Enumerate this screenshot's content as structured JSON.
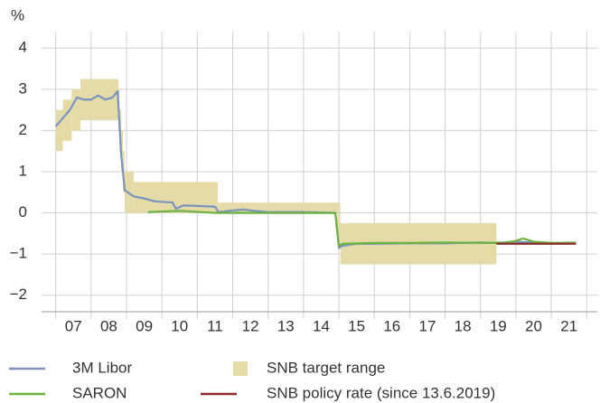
{
  "chart_data": {
    "type": "line",
    "y_unit": "%",
    "xlim": [
      2006.6,
      2022.3
    ],
    "ylim": [
      -2.4,
      4.4
    ],
    "yticks": [
      4,
      3,
      2,
      1,
      0,
      {
        "value": -1,
        "label": "−1"
      },
      {
        "value": -2,
        "label": "−2"
      }
    ],
    "xticks": [
      {
        "value": 2007.5,
        "label": "07"
      },
      {
        "value": 2008.5,
        "label": "08"
      },
      {
        "value": 2009.5,
        "label": "09"
      },
      {
        "value": 2010.5,
        "label": "10"
      },
      {
        "value": 2011.5,
        "label": "11"
      },
      {
        "value": 2012.5,
        "label": "12"
      },
      {
        "value": 2013.5,
        "label": "13"
      },
      {
        "value": 2014.5,
        "label": "14"
      },
      {
        "value": 2015.5,
        "label": "15"
      },
      {
        "value": 2016.5,
        "label": "16"
      },
      {
        "value": 2017.5,
        "label": "17"
      },
      {
        "value": 2018.5,
        "label": "18"
      },
      {
        "value": 2019.5,
        "label": "19"
      },
      {
        "value": 2020.5,
        "label": "20"
      },
      {
        "value": 2021.5,
        "label": "21"
      }
    ],
    "x_gridlines": [
      2007,
      2008,
      2009,
      2010,
      2011,
      2012,
      2013,
      2014,
      2015,
      2016,
      2017,
      2018,
      2019,
      2020,
      2021,
      2022
    ],
    "grid": true,
    "target_range": {
      "name": "SNB target range",
      "color": "#e5dba8",
      "edges": [
        2007.0,
        2007.2,
        2007.45,
        2007.7,
        2008.77,
        2008.8,
        2008.85,
        2008.9,
        2008.95,
        2009.2,
        2011.58,
        2014.96,
        2015.04,
        2019.45
      ],
      "lower": [
        1.5,
        1.75,
        2.0,
        2.25,
        2.0,
        1.5,
        1.0,
        0.5,
        0.0,
        0.0,
        0.0,
        -0.75,
        -1.25
      ],
      "upper": [
        2.5,
        2.75,
        3.0,
        3.25,
        3.0,
        2.5,
        2.0,
        1.5,
        1.0,
        0.75,
        0.25,
        0.25,
        -0.25
      ]
    },
    "series": [
      {
        "name": "3M Libor",
        "color": "#7a94bd",
        "x": [
          2007.0,
          2007.2,
          2007.4,
          2007.6,
          2007.8,
          2008.0,
          2008.2,
          2008.4,
          2008.6,
          2008.75,
          2008.85,
          2008.95,
          2009.2,
          2009.5,
          2009.8,
          2010.3,
          2010.4,
          2010.6,
          2011.0,
          2011.5,
          2011.6,
          2011.9,
          2012.3,
          2012.6,
          2013.0,
          2014.0,
          2014.9,
          2015.0,
          2015.1,
          2015.5,
          2016.0,
          2017.0,
          2018.0,
          2019.0,
          2019.5,
          2020.0,
          2021.0,
          2021.6
        ],
        "values": [
          2.1,
          2.3,
          2.5,
          2.8,
          2.75,
          2.75,
          2.85,
          2.75,
          2.8,
          2.95,
          1.4,
          0.55,
          0.4,
          0.35,
          0.28,
          0.25,
          0.1,
          0.18,
          0.17,
          0.15,
          0.02,
          0.05,
          0.08,
          0.05,
          0.02,
          0.02,
          0.0,
          -0.85,
          -0.8,
          -0.75,
          -0.75,
          -0.74,
          -0.74,
          -0.72,
          -0.73,
          -0.7,
          -0.74,
          -0.74
        ]
      },
      {
        "name": "SARON",
        "color": "#6cb33f",
        "x": [
          2009.6,
          2010.5,
          2011.5,
          2012.0,
          2013.0,
          2014.0,
          2014.9,
          2015.0,
          2015.1,
          2016.0,
          2017.0,
          2018.0,
          2019.3,
          2019.7,
          2020.0,
          2020.2,
          2020.5,
          2021.0,
          2021.7
        ],
        "values": [
          0.02,
          0.05,
          0.0,
          0.0,
          0.0,
          0.0,
          0.0,
          -0.8,
          -0.75,
          -0.73,
          -0.73,
          -0.72,
          -0.73,
          -0.72,
          -0.68,
          -0.62,
          -0.7,
          -0.73,
          -0.72
        ]
      },
      {
        "name": "SNB policy rate (since 13.6.2019)",
        "color": "#8b2b2b",
        "x": [
          2019.45,
          2021.7
        ],
        "values": [
          -0.75,
          -0.75
        ]
      }
    ]
  }
}
